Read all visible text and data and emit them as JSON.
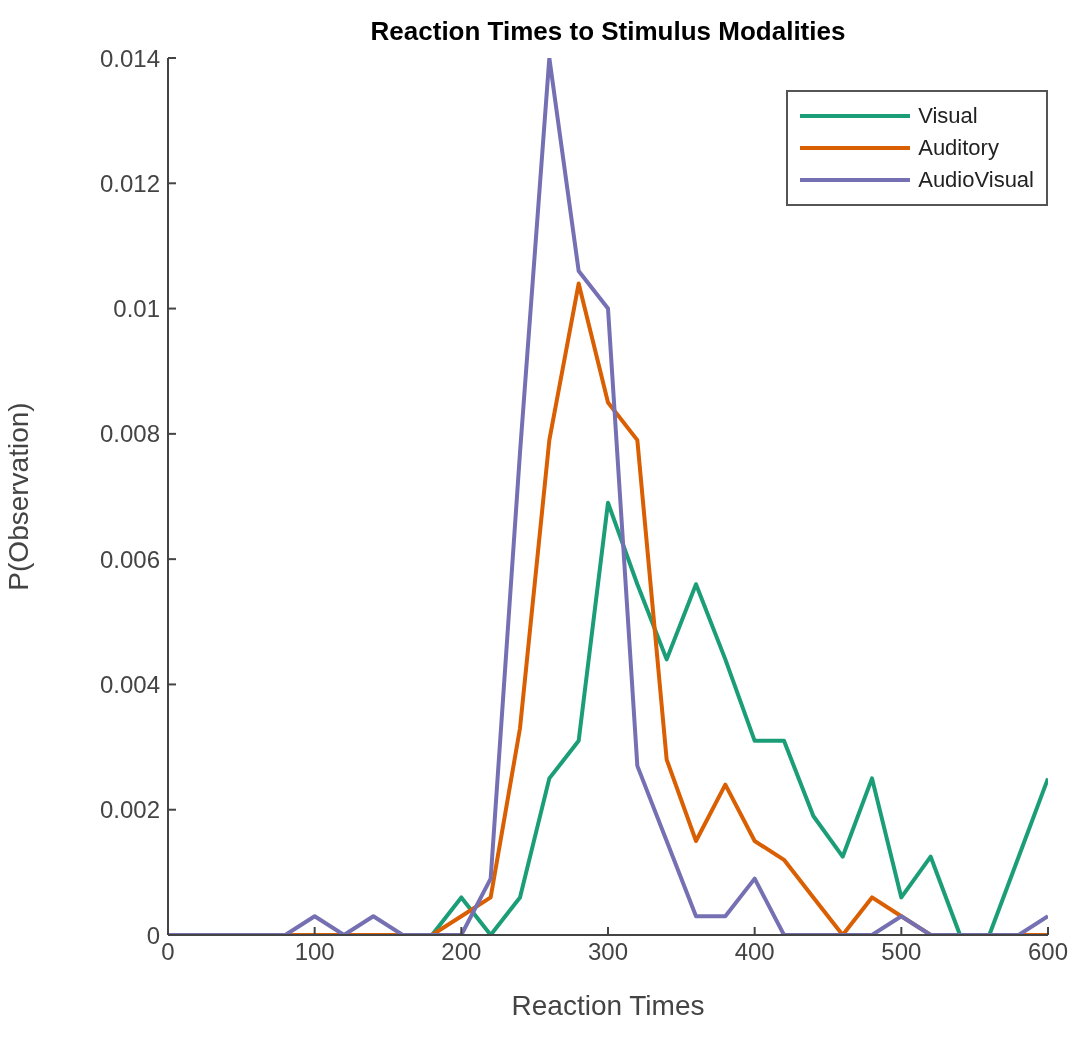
{
  "chart_data": {
    "type": "line",
    "title": "Reaction Times to Stimulus Modalities",
    "xlabel": "Reaction Times",
    "ylabel": "P(Observation)",
    "x": [
      0,
      20,
      40,
      60,
      80,
      100,
      120,
      140,
      160,
      180,
      200,
      220,
      240,
      260,
      280,
      300,
      320,
      340,
      360,
      380,
      400,
      420,
      440,
      460,
      480,
      500,
      520,
      540,
      560,
      580,
      600
    ],
    "series": [
      {
        "name": "Visual",
        "color": "#1b9e77",
        "values": [
          null,
          null,
          null,
          null,
          null,
          null,
          null,
          null,
          0,
          0,
          0.0006,
          0,
          0.0006,
          0.0025,
          0.0031,
          0.0069,
          0.0056,
          0.0044,
          0.0056,
          0.0044,
          0.0031,
          0.0031,
          0.0019,
          0.00125,
          0.0025,
          0.0006,
          0.00125,
          0,
          0,
          0.00125,
          0.0025
        ]
      },
      {
        "name": "Auditory",
        "color": "#d95f02",
        "values": [
          null,
          null,
          null,
          null,
          0,
          0,
          0,
          0,
          0,
          0,
          0.0003,
          0.0006,
          0.0033,
          0.0079,
          0.0104,
          0.0085,
          0.0079,
          0.0028,
          0.0015,
          0.0024,
          0.0015,
          0.0012,
          0.0006,
          0,
          0.0006,
          0.0003,
          0,
          0,
          0,
          0,
          0
        ]
      },
      {
        "name": "AudioVisual",
        "color": "#7570b3",
        "values": [
          0,
          0,
          0,
          0,
          0,
          0.0003,
          0,
          0.0003,
          0,
          0,
          0,
          0.0009,
          0.0077,
          0.014,
          0.0106,
          0.01,
          0.0027,
          0.0015,
          0.0003,
          0.0003,
          0.0009,
          0,
          0,
          0,
          0,
          0.0003,
          0,
          0,
          0,
          0,
          0.0003
        ]
      }
    ],
    "xlim": [
      0,
      600
    ],
    "xticks": [
      0,
      100,
      200,
      300,
      400,
      500,
      600
    ],
    "ylim": [
      0,
      0.014
    ],
    "yticks": [
      0,
      0.002,
      0.004,
      0.006,
      0.008,
      0.01,
      0.012,
      0.014
    ],
    "grid": false,
    "legend": "top right",
    "marker": "none",
    "line_style": "solid"
  }
}
